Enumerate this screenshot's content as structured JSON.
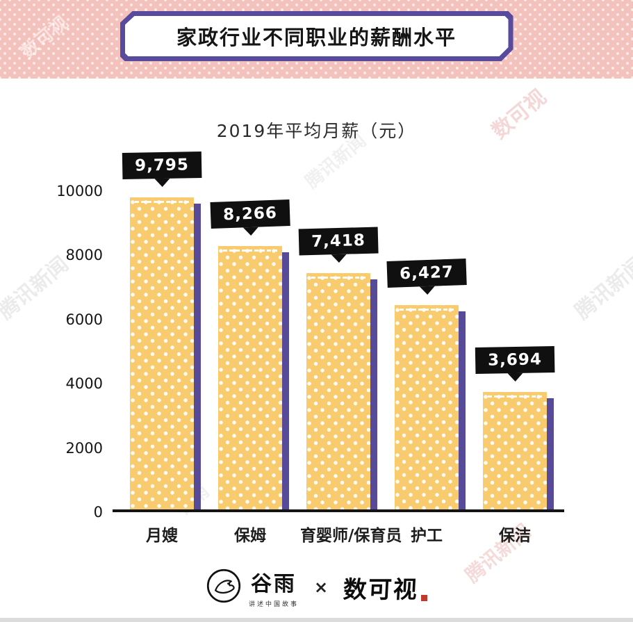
{
  "header": {
    "title": "家政行业不同职业的薪酬水平"
  },
  "chart": {
    "subtitle": "2019年平均月薪（元）",
    "ytick_labels": [
      "10000",
      "8000",
      "6000",
      "4000",
      "2000",
      "0"
    ]
  },
  "chart_data": {
    "type": "bar",
    "title": "家政行业不同职业的薪酬水平",
    "subtitle": "2019年平均月薪（元）",
    "categories": [
      "月嫂",
      "保姆",
      "育婴师/保育员",
      "护工",
      "保洁"
    ],
    "values": [
      9795,
      8266,
      7418,
      6427,
      3694
    ],
    "value_labels": [
      "9,795",
      "8,266",
      "7,418",
      "6,427",
      "3,694"
    ],
    "xlabel": "",
    "ylabel": "",
    "ylim": [
      0,
      10000
    ],
    "yticks": [
      0,
      2000,
      4000,
      6000,
      8000,
      10000
    ],
    "grid": false,
    "legend": "none",
    "bar_color": "#F8CB6E",
    "bar_shadow_color": "#564A99",
    "tag_color": "#101010",
    "header_band_color": "#F3C2BD",
    "accent_purple": "#584A9C"
  },
  "footer": {
    "brand_left": "谷雨",
    "brand_left_tagline": "讲述中国故事",
    "separator": "×",
    "brand_right": "数可视"
  },
  "watermarks": [
    "数可视",
    "腾讯新闻",
    "腾讯新闻",
    "腾讯新闻",
    "腾讯新闻",
    "谷雨",
    "数可视"
  ]
}
